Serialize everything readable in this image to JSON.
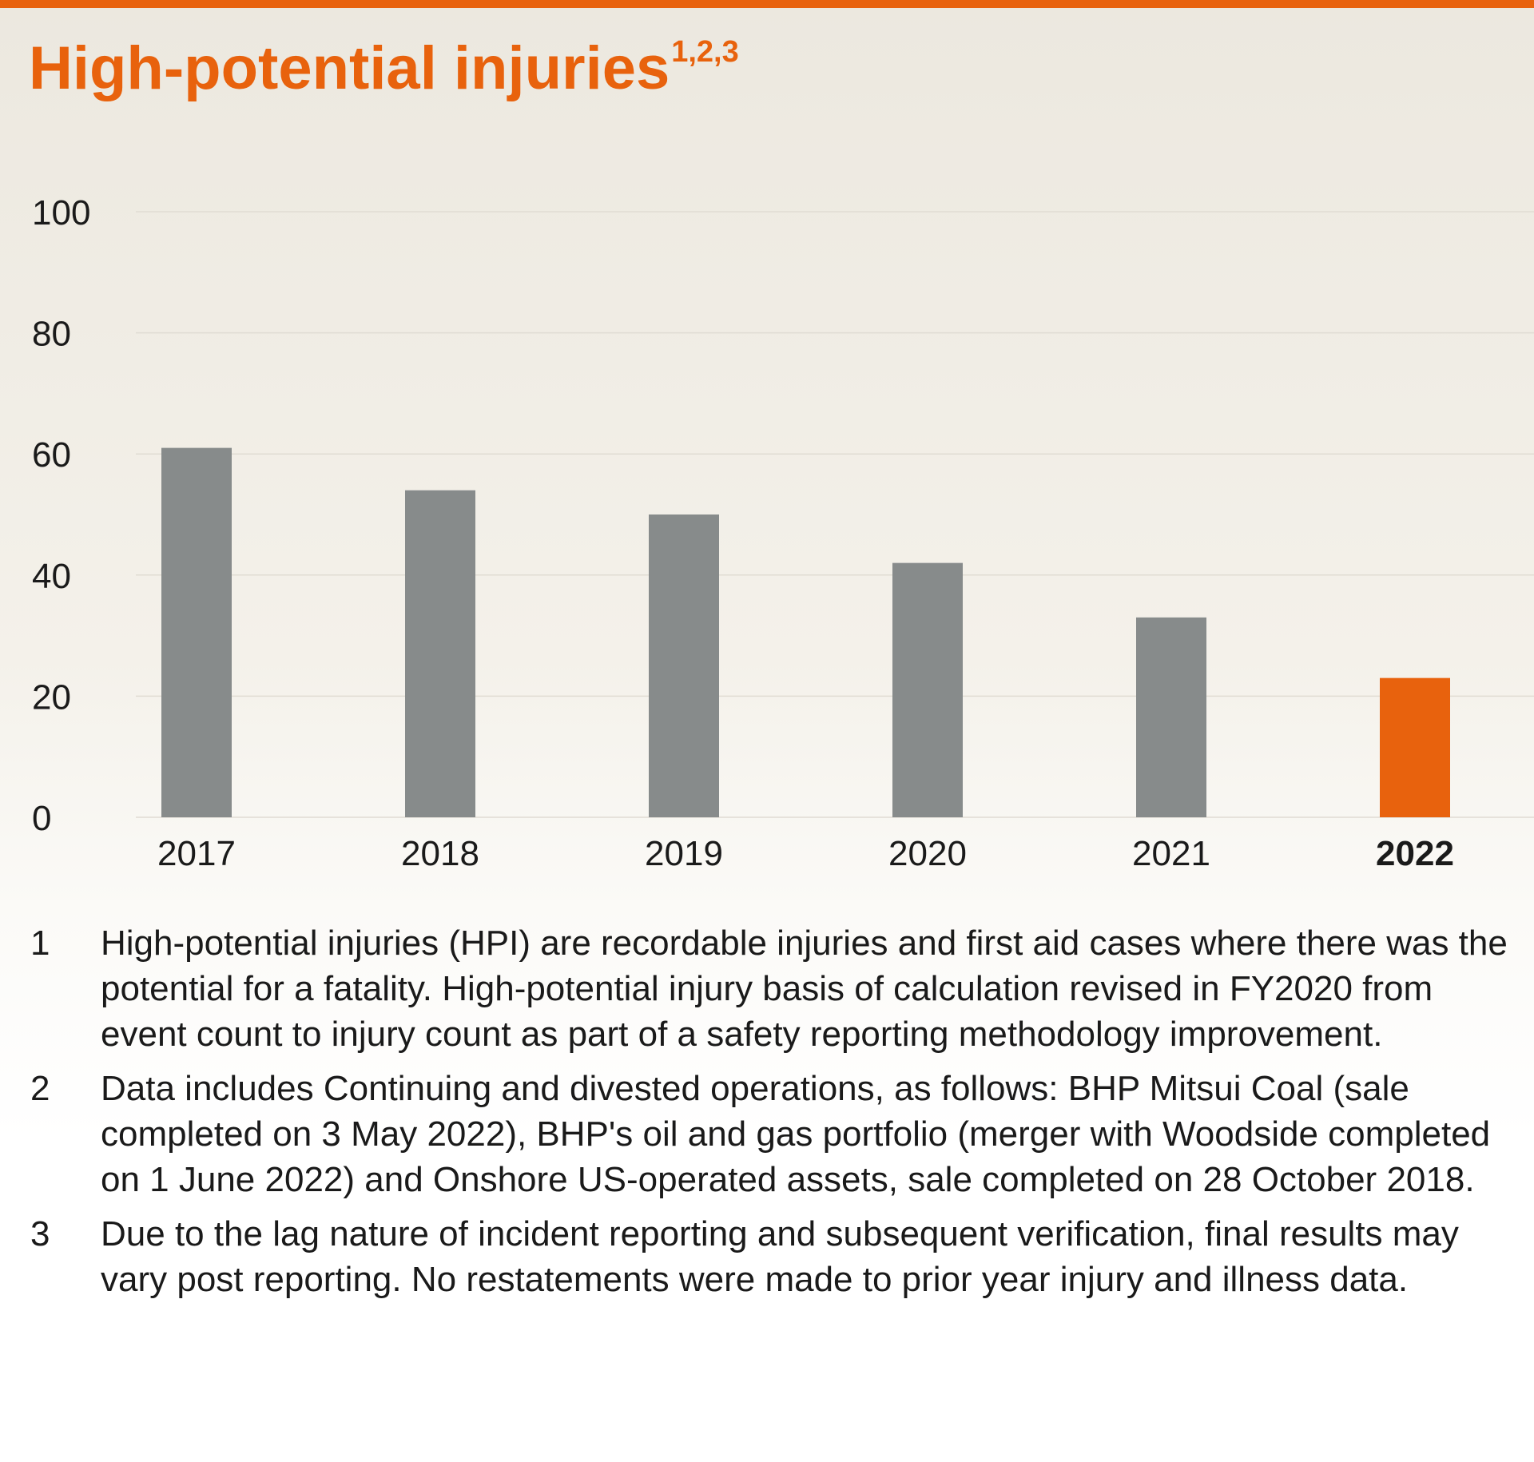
{
  "title": {
    "text": "High-potential injuries",
    "superscript": "1,2,3"
  },
  "colors": {
    "accent": "#e8620d",
    "bar": "#878b8b",
    "highlight_bar": "#e8620d",
    "grid": "#e0dcd3",
    "text": "#1a1a1a"
  },
  "chart_data": {
    "type": "bar",
    "categories": [
      "2017",
      "2018",
      "2019",
      "2020",
      "2021",
      "2022"
    ],
    "values": [
      61,
      54,
      50,
      42,
      33,
      23
    ],
    "highlight": "2022",
    "ylim": [
      0,
      100
    ],
    "yticks": [
      0,
      20,
      40,
      60,
      80,
      100
    ],
    "grid": true,
    "xlabel": "",
    "ylabel": ""
  },
  "footnotes": [
    {
      "number": "1",
      "text": "High-potential injuries (HPI) are recordable injuries and first aid cases where there was the potential for a fatality. High-potential injury basis of calculation revised in FY2020 from event count to injury count as part of a safety reporting methodology improvement."
    },
    {
      "number": "2",
      "text": "Data includes Continuing and divested operations, as follows: BHP Mitsui Coal (sale completed on 3 May 2022), BHP's oil and gas portfolio (merger with Woodside completed on 1 June 2022) and Onshore US-operated assets, sale completed on 28 October 2018."
    },
    {
      "number": "3",
      "text": "Due to the lag nature of incident reporting and subsequent verification, final results may vary post reporting. No restatements were made to prior year injury and illness data."
    }
  ]
}
